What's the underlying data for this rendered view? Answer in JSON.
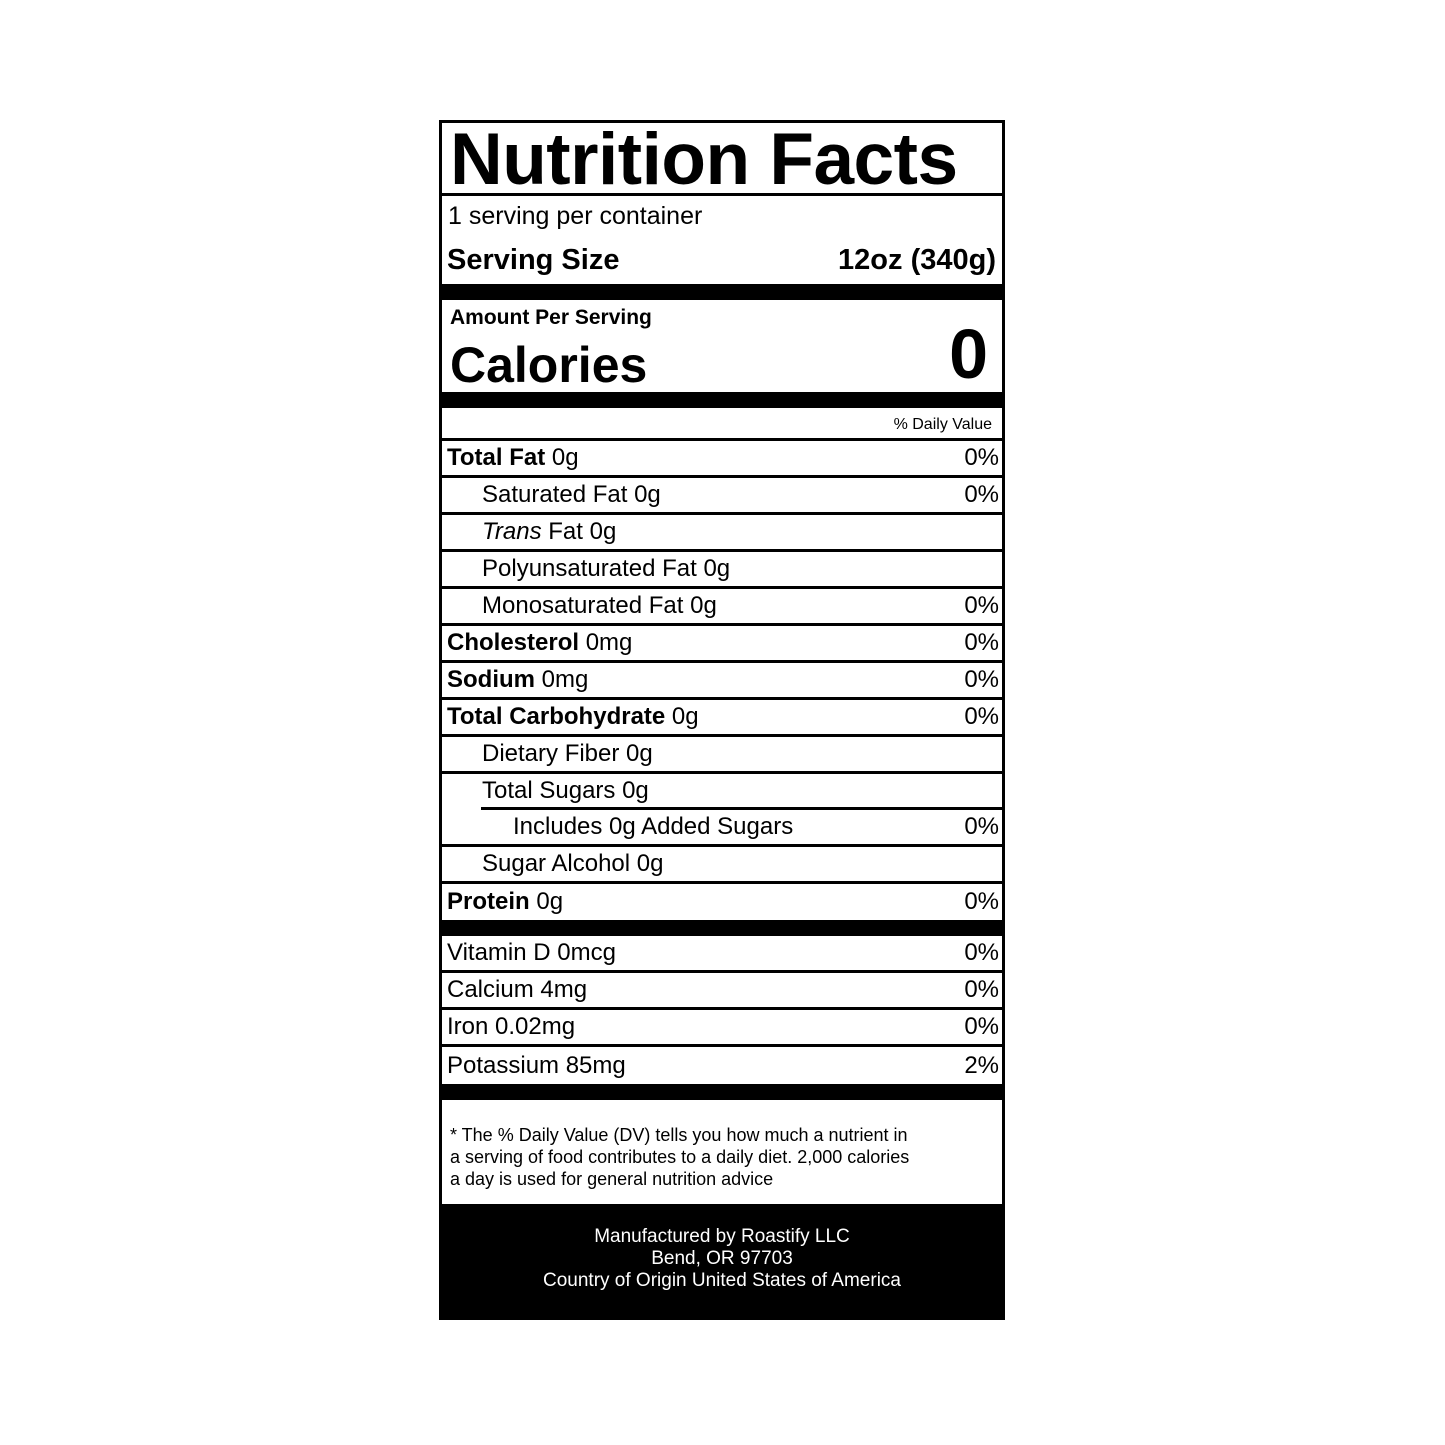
{
  "title": "Nutrition Facts",
  "servings_per_container": "1 serving per container",
  "serving_size": {
    "label": "Serving Size",
    "value": "12oz (340g)"
  },
  "amount_per_serving": "Amount Per Serving",
  "calories": {
    "label": "Calories",
    "value": "0"
  },
  "daily_value_header": "% Daily Value",
  "nutrients": [
    {
      "name": "Total Fat",
      "amount": "0g",
      "dv": "0%"
    },
    {
      "name": "Saturated Fat 0g",
      "dv": "0%"
    },
    {
      "name_italic": "Trans",
      "name": " Fat 0g"
    },
    {
      "name": "Polyunsaturated Fat 0g"
    },
    {
      "name": "Monosaturated Fat 0g",
      "dv": "0%"
    },
    {
      "name": "Cholesterol",
      "amount": "0mg",
      "dv": "0%"
    },
    {
      "name": "Sodium",
      "amount": "0mg",
      "dv": "0%"
    },
    {
      "name": "Total Carbohydrate",
      "amount": "0g",
      "dv": "0%"
    },
    {
      "name": "Dietary Fiber 0g"
    },
    {
      "name": "Total Sugars 0g"
    },
    {
      "name": "Includes 0g Added Sugars",
      "dv": "0%"
    },
    {
      "name": "Sugar Alcohol 0g"
    },
    {
      "name": "Protein",
      "amount": "0g",
      "dv": "0%"
    }
  ],
  "vitamins": [
    {
      "name": "Vitamin D 0mcg",
      "dv": "0%"
    },
    {
      "name": "Calcium 4mg",
      "dv": "0%"
    },
    {
      "name": "Iron 0.02mg",
      "dv": "0%"
    },
    {
      "name": "Potassium 85mg",
      "dv": "2%"
    }
  ],
  "footnote": [
    "* The % Daily Value (DV) tells you how much a nutrient in",
    "a serving of food contributes to a daily diet. 2,000 calories",
    "a day is used for general nutrition advice"
  ],
  "manufacturer": [
    "Manufactured by Roastify LLC",
    "Bend, OR 97703",
    "Country of Origin United States of America"
  ]
}
